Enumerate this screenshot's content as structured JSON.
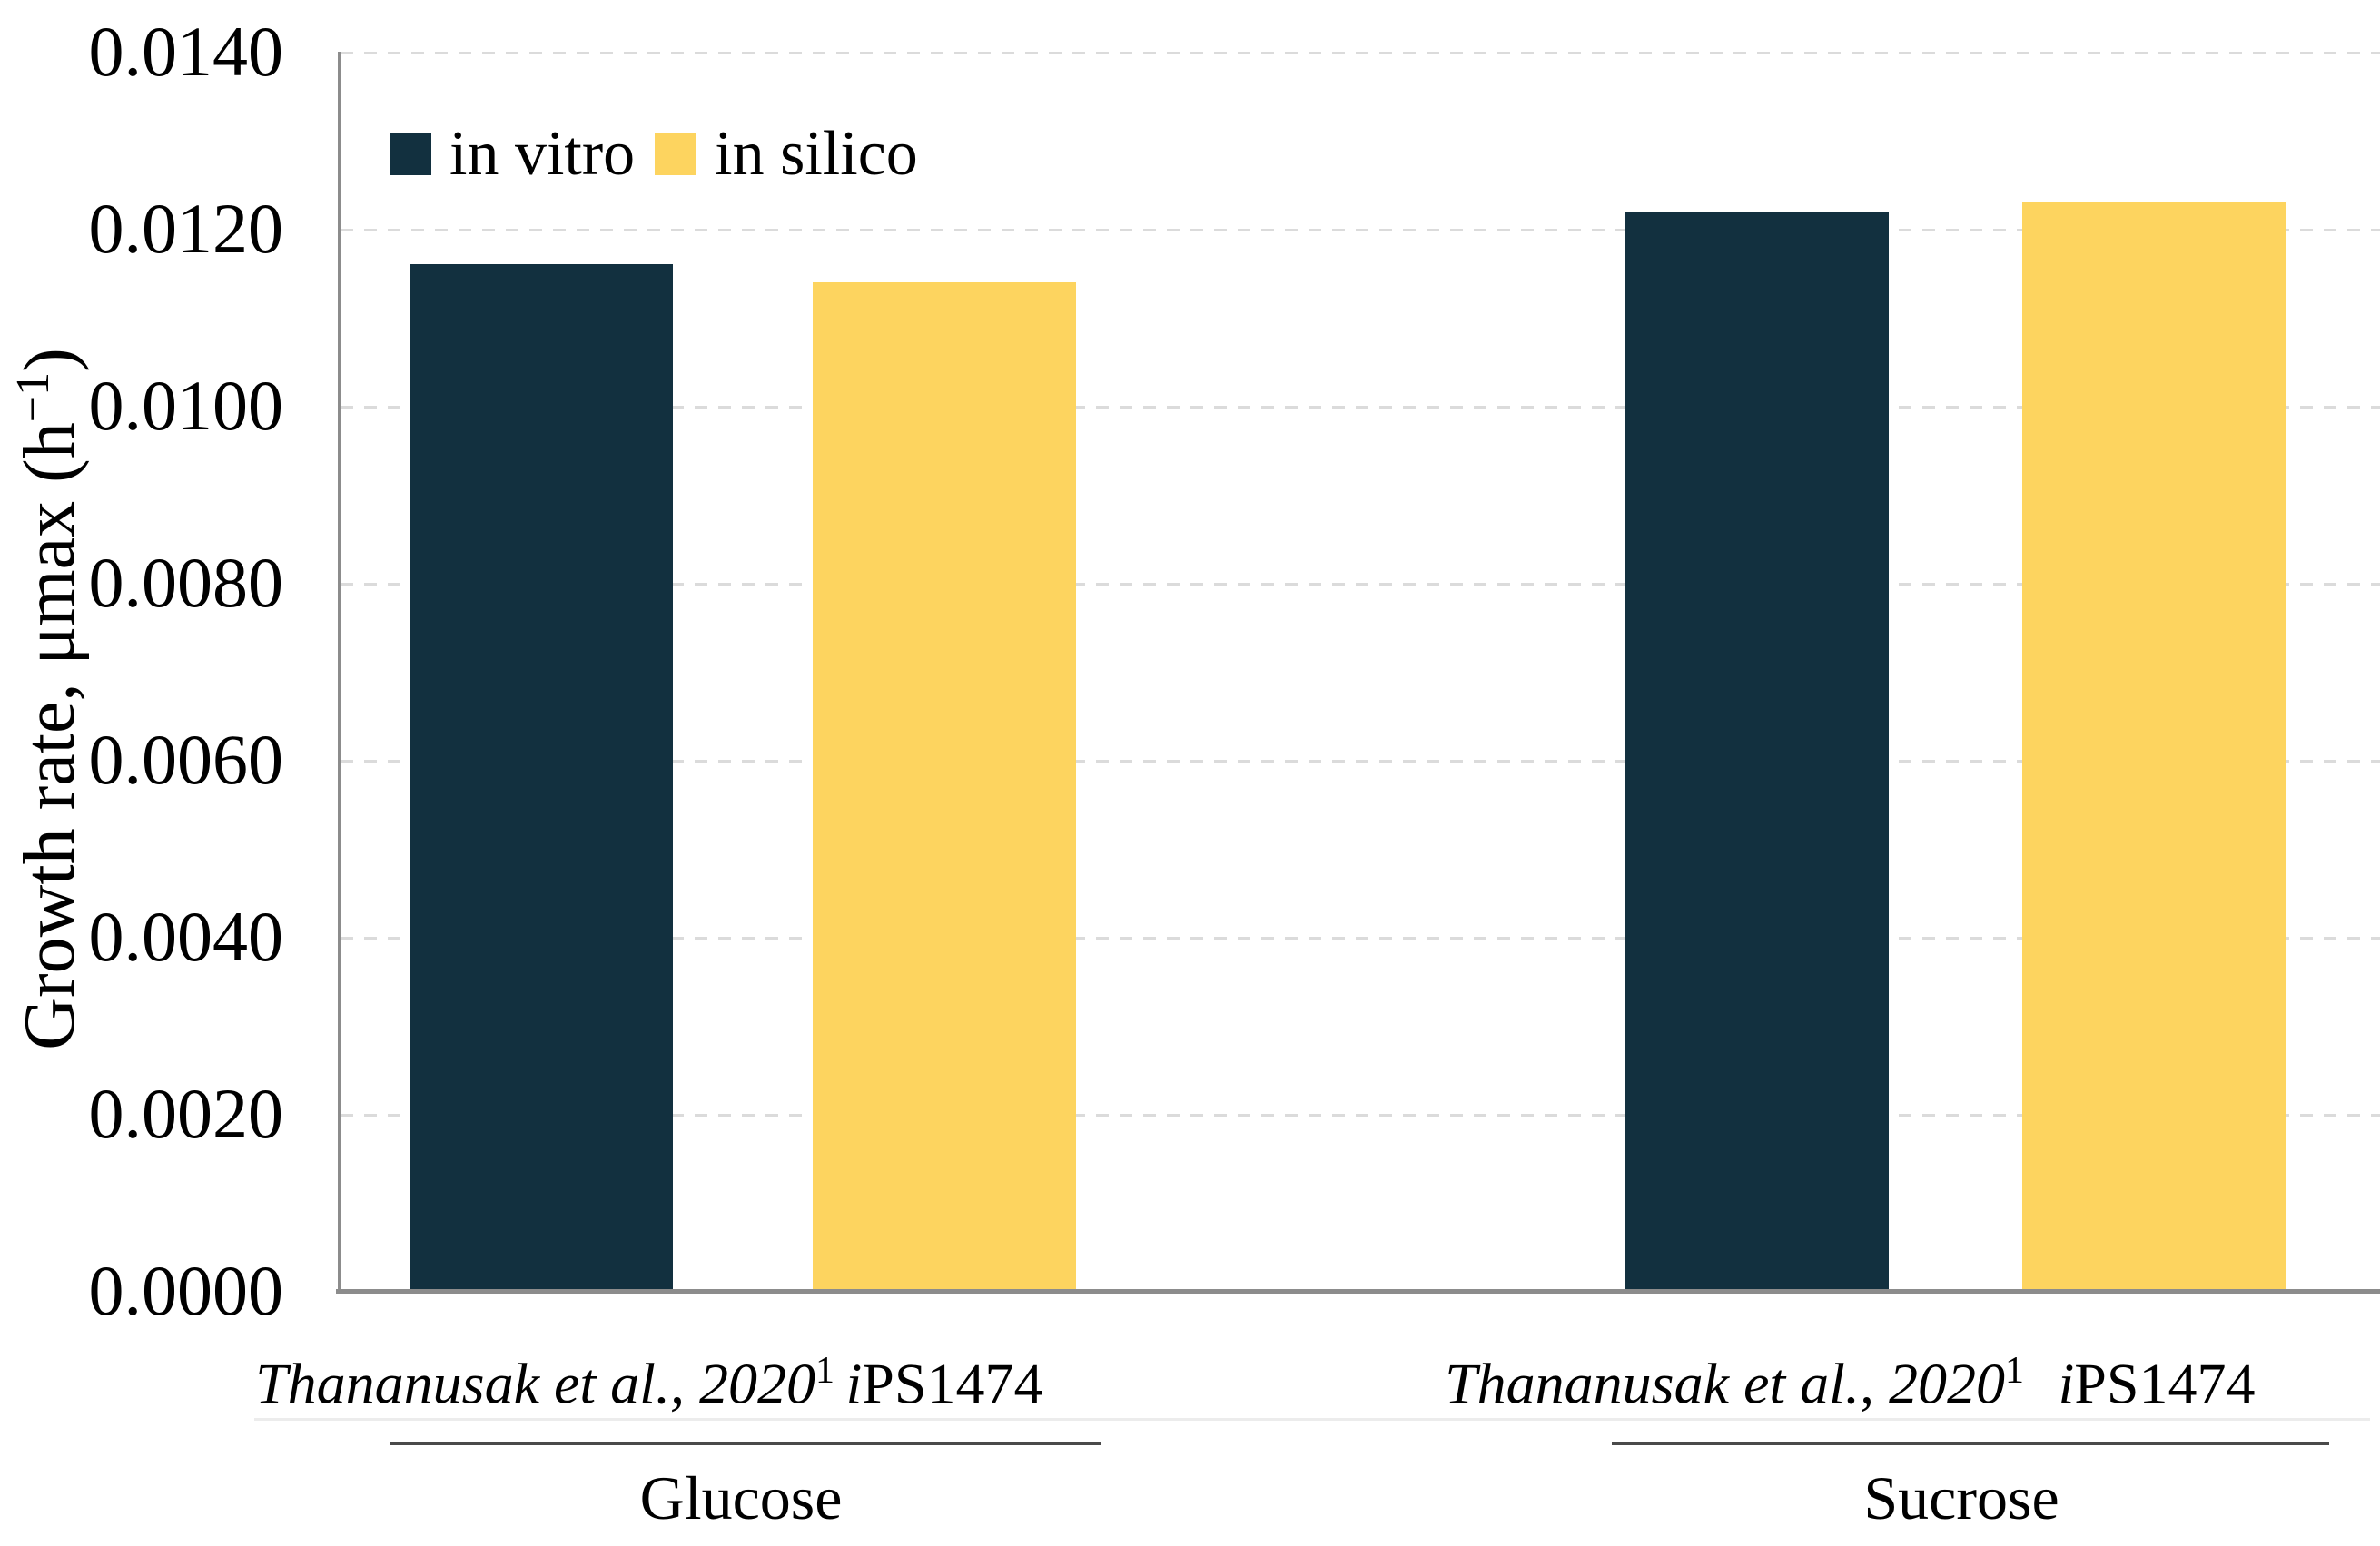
{
  "chart_data": {
    "type": "bar",
    "title": "",
    "ylabel_text": "Growth rate, μmax (h−1)",
    "ylabel_parts": {
      "pre": "Growth rate, μmax (h",
      "sup": "−1",
      "post": ")"
    },
    "ylim": [
      0,
      0.014
    ],
    "ytick_step": 0.002,
    "ytick_labels": [
      "0.0140",
      "0.0120",
      "0.0100",
      "0.0080",
      "0.0060",
      "0.0040",
      "0.0020",
      "0.0000"
    ],
    "grid": "horizontal dashed light-gray",
    "legend_position": "top-left inside plot",
    "categories": [
      "Glucose",
      "Sucrose"
    ],
    "series": [
      {
        "name": "in vitro",
        "color": "#12303F",
        "values": [
          0.0116,
          0.0122
        ]
      },
      {
        "name": "in silico",
        "color": "#FDD45F",
        "values": [
          0.0114,
          0.0123
        ]
      }
    ],
    "bars": [
      {
        "group": "Glucose",
        "series": "in vitro",
        "value": 0.0116,
        "color": "#12303F",
        "label_italic": "Thananusak et al., 2020",
        "label_roman": "",
        "label_sup": "1"
      },
      {
        "group": "Glucose",
        "series": "in silico",
        "value": 0.0114,
        "color": "#FDD45F",
        "label_italic": "i",
        "label_roman": "PS1474",
        "label_sup": ""
      },
      {
        "group": "Sucrose",
        "series": "in vitro",
        "value": 0.0122,
        "color": "#12303F",
        "label_italic": "Thananusak et al., 2020",
        "label_roman": "",
        "label_sup": "1"
      },
      {
        "group": "Sucrose",
        "series": "in silico",
        "value": 0.0123,
        "color": "#FDD45F",
        "label_italic": "i",
        "label_roman": "PS1474",
        "label_sup": ""
      }
    ],
    "group_labels": [
      "Glucose",
      "Sucrose"
    ]
  },
  "legend": {
    "items": [
      {
        "label": "in vitro",
        "color": "#12303F"
      },
      {
        "label": "in silico",
        "color": "#FDD45F"
      }
    ]
  },
  "colors": {
    "in_vitro": "#12303F",
    "in_silico": "#FDD45F",
    "axis": "#8C8C8C",
    "gridline": "#DBDBDB",
    "group_line": "#4A4A4A",
    "background": "#FFFFFF"
  }
}
